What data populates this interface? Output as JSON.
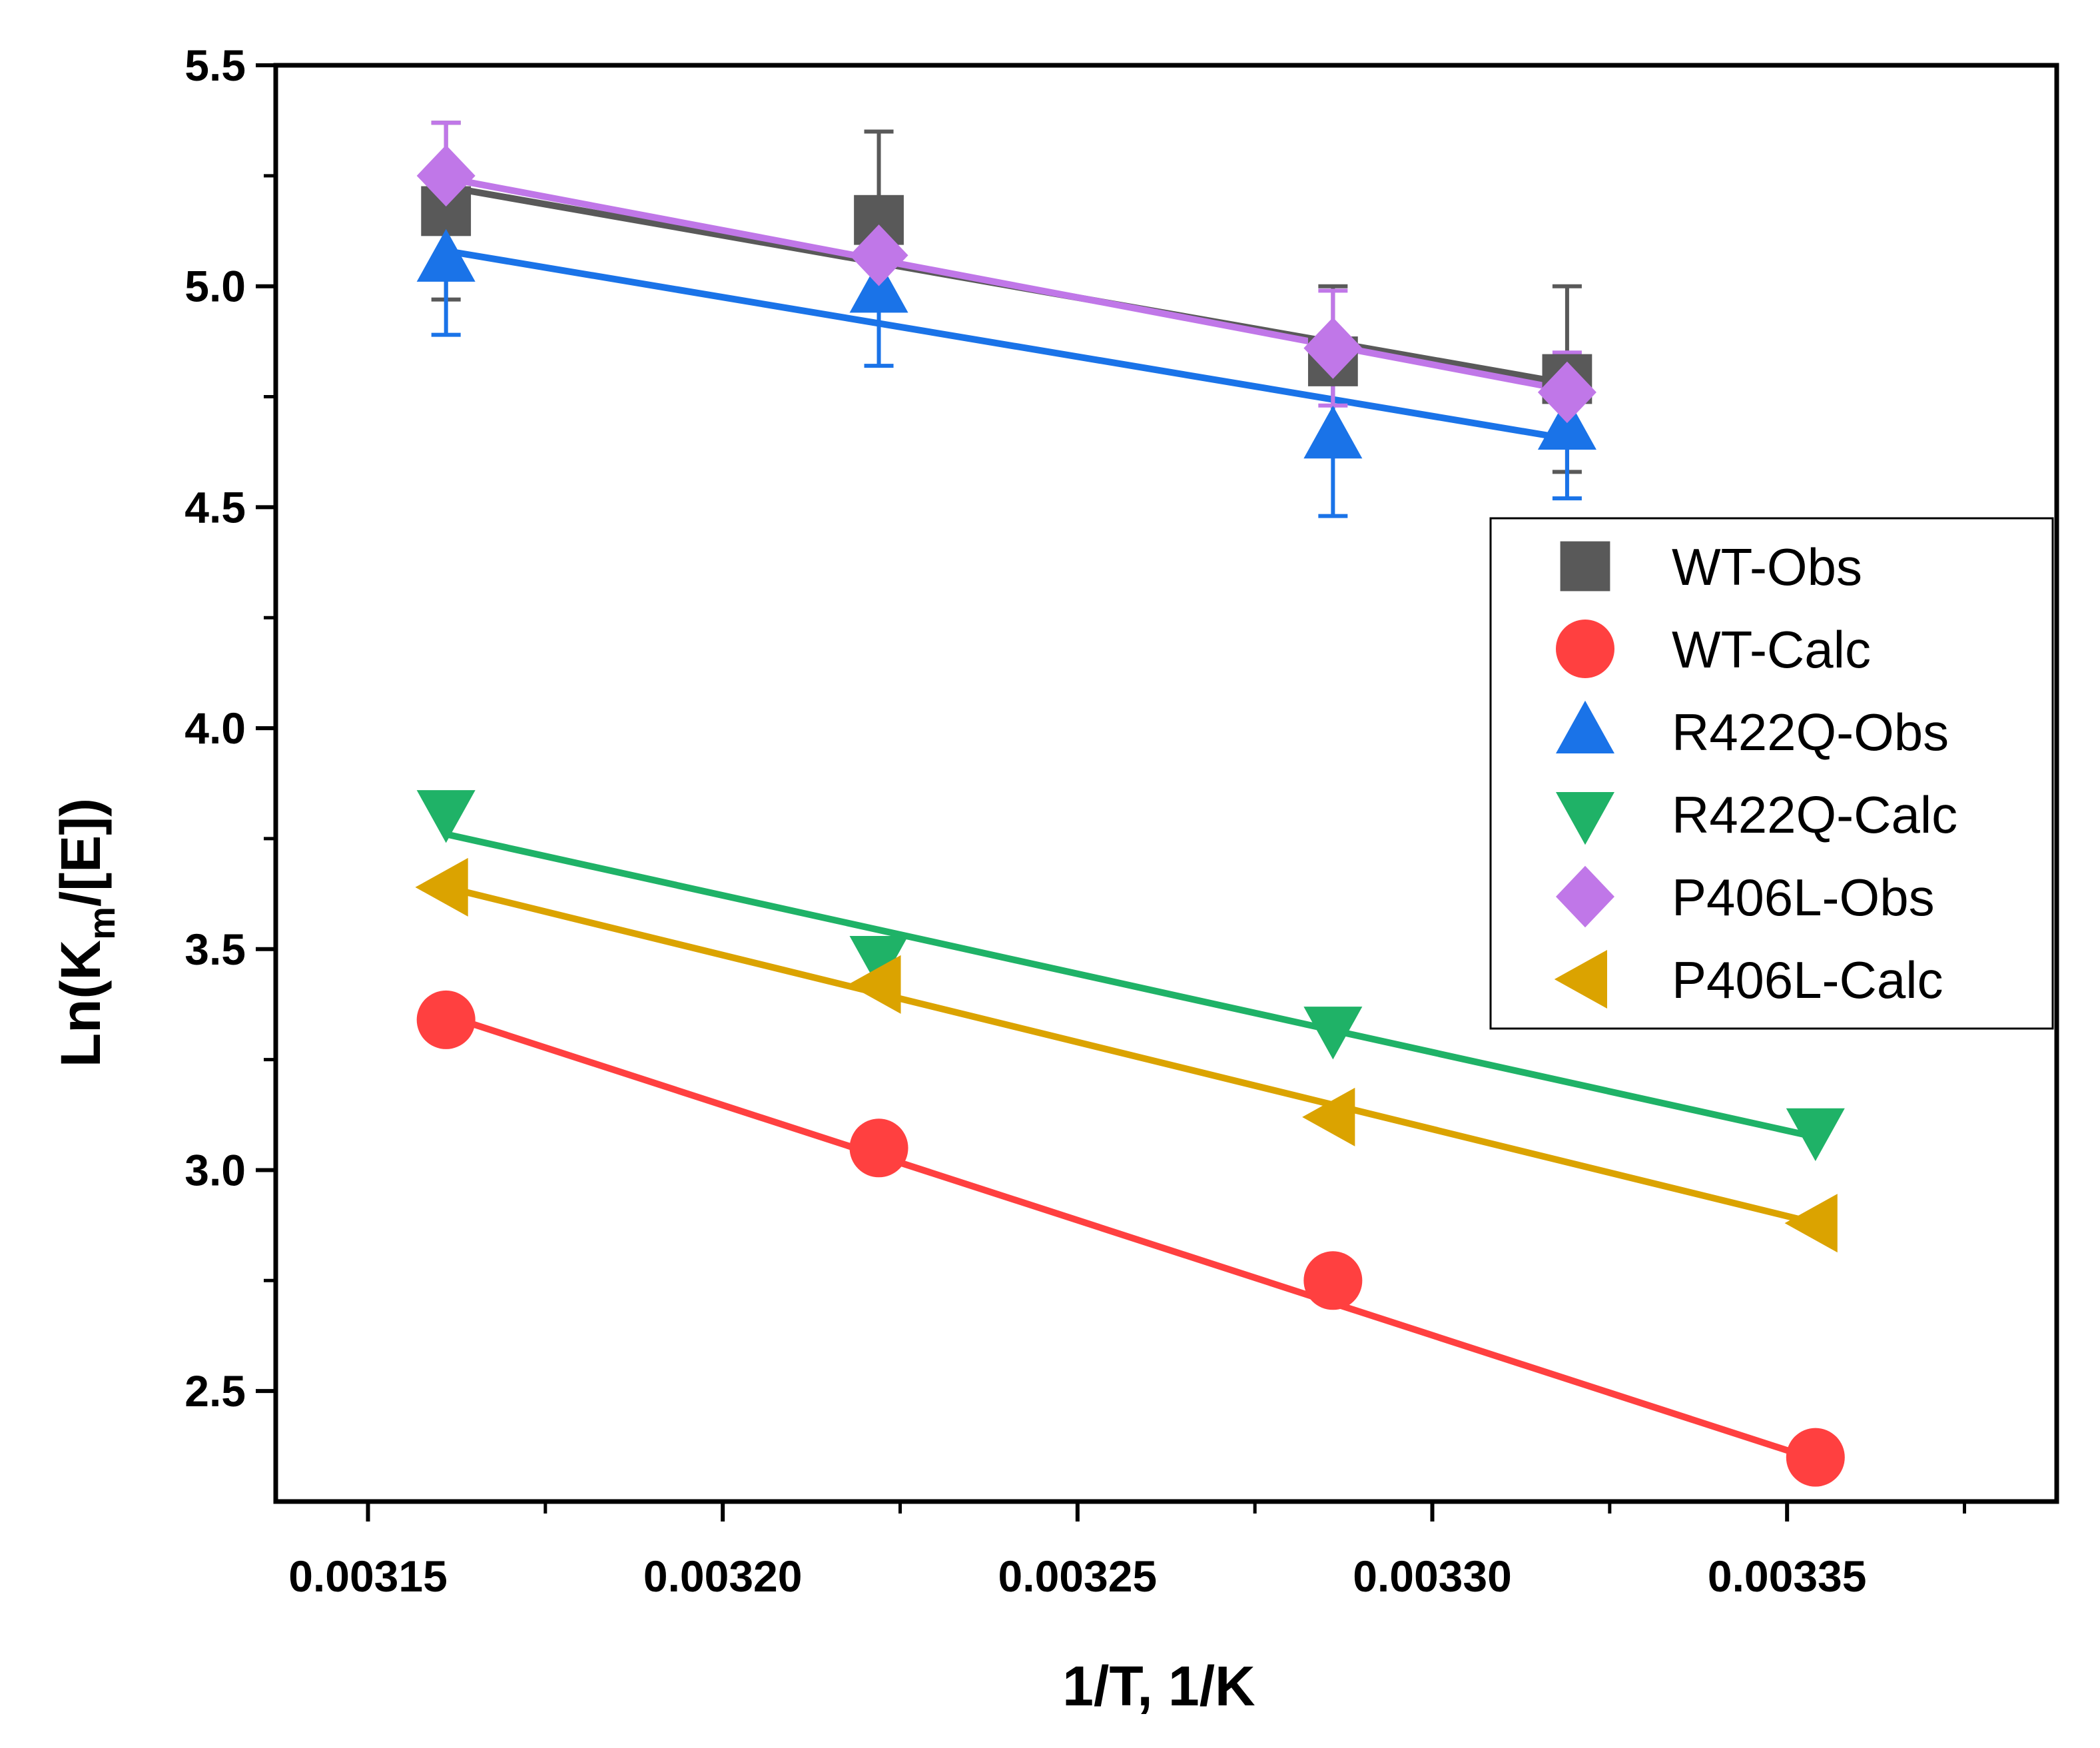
{
  "chart_data": {
    "type": "scatter",
    "title": "",
    "xlabel": "1/T, 1/K",
    "ylabel": {
      "prefix": "Ln(K",
      "subscript": "m",
      "suffix": "/[E])"
    },
    "xlim": [
      0.003137,
      0.003388
    ],
    "ylim": [
      2.25,
      5.5
    ],
    "x_ticks": [
      {
        "value": 0.00315,
        "label": "0.00315"
      },
      {
        "value": 0.0032,
        "label": "0.00320"
      },
      {
        "value": 0.00325,
        "label": "0.00325"
      },
      {
        "value": 0.0033,
        "label": "0.00330"
      },
      {
        "value": 0.00335,
        "label": "0.00335"
      }
    ],
    "y_ticks": [
      {
        "value": 2.5,
        "label": "2.5"
      },
      {
        "value": 3.0,
        "label": "3.0"
      },
      {
        "value": 3.5,
        "label": "3.5"
      },
      {
        "value": 4.0,
        "label": "4.0"
      },
      {
        "value": 4.5,
        "label": "4.5"
      },
      {
        "value": 5.0,
        "label": "5.0"
      },
      {
        "value": 5.5,
        "label": "5.5"
      }
    ],
    "grid": false,
    "legend_position": "right",
    "series": [
      {
        "name": "WT-Obs",
        "marker": "square",
        "color": "#595959",
        "x": [
          0.003161,
          0.003222,
          0.003286,
          0.003319
        ],
        "y": [
          5.17,
          5.15,
          4.83,
          4.79
        ],
        "err": [
          0.2,
          0.2,
          0.17,
          0.21
        ],
        "fit": [
          [
            0.003161,
            5.225
          ],
          [
            0.003319,
            4.78
          ]
        ]
      },
      {
        "name": "WT-Calc",
        "marker": "circle",
        "color": "#ff4040",
        "x": [
          0.003161,
          0.003222,
          0.003286,
          0.003354
        ],
        "y": [
          3.34,
          3.05,
          2.75,
          2.35
        ],
        "fit": [
          [
            0.003161,
            3.35
          ],
          [
            0.003354,
            2.345
          ]
        ]
      },
      {
        "name": "R422Q-Obs",
        "marker": "triangle-up",
        "color": "#1a73e8",
        "x": [
          0.003161,
          0.003222,
          0.003286,
          0.003319
        ],
        "y": [
          5.06,
          4.99,
          4.66,
          4.68
        ],
        "err": [
          0.17,
          0.17,
          0.18,
          0.16
        ],
        "fit": [
          [
            0.003161,
            5.08
          ],
          [
            0.003319,
            4.655
          ]
        ]
      },
      {
        "name": "R422Q-Calc",
        "marker": "triangle-down",
        "color": "#1fb267",
        "x": [
          0.003161,
          0.003222,
          0.003286,
          0.003354
        ],
        "y": [
          3.81,
          3.48,
          3.32,
          3.09
        ],
        "fit": [
          [
            0.003161,
            3.76
          ],
          [
            0.003354,
            3.075
          ]
        ]
      },
      {
        "name": "P406L-Obs",
        "marker": "diamond",
        "color": "#c077e8",
        "x": [
          0.003161,
          0.003222,
          0.003286,
          0.003319
        ],
        "y": [
          5.25,
          5.07,
          4.86,
          4.76
        ],
        "err": [
          0.12,
          0.12,
          0.13,
          0.09
        ],
        "fit": [
          [
            0.003161,
            5.245
          ],
          [
            0.003319,
            4.765
          ]
        ]
      },
      {
        "name": "P406L-Calc",
        "marker": "triangle-left",
        "color": "#dba300",
        "x": [
          0.003161,
          0.003222,
          0.003286,
          0.003354
        ],
        "y": [
          3.64,
          3.42,
          3.12,
          2.88
        ],
        "fit": [
          [
            0.003161,
            3.64
          ],
          [
            0.003354,
            2.88
          ]
        ]
      }
    ]
  }
}
